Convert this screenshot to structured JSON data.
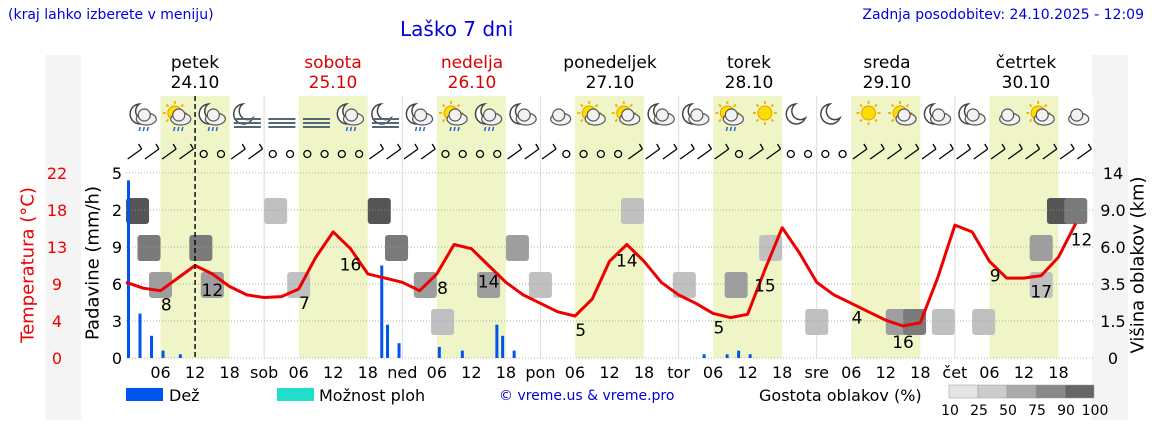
{
  "header": {
    "hint": "(kraj lahko izberete v meniju)",
    "title": "Laško 7 dni",
    "updated": "Zadnja posodobitev: 24.10.2025 - 12:09"
  },
  "days": [
    {
      "name": "petek",
      "date": "24.10",
      "weekend": false
    },
    {
      "name": "sobota",
      "date": "25.10",
      "weekend": true
    },
    {
      "name": "nedelja",
      "date": "26.10",
      "weekend": true
    },
    {
      "name": "ponedeljek",
      "date": "27.10",
      "weekend": false
    },
    {
      "name": "torek",
      "date": "28.10",
      "weekend": false
    },
    {
      "name": "sreda",
      "date": "29.10",
      "weekend": false
    },
    {
      "name": "četrtek",
      "date": "30.10",
      "weekend": false
    }
  ],
  "weather_icons": [
    "moon-cloud-rain",
    "sun-cloud-rain",
    "moon-cloud-rain",
    "moon-fog",
    "fog",
    "fog",
    "moon-cloud-rain",
    "moon-fog",
    "moon-cloud-drizzle",
    "sun-cloud-drizzle",
    "moon-cloud-drizzle",
    "moon-cloud",
    "cloud",
    "sun-cloud",
    "sun-cloud",
    "moon-cloud",
    "moon-cloud",
    "sun-cloud-rain",
    "sun",
    "moon",
    "moon",
    "sun",
    "sun-cloud",
    "moon-cloud",
    "moon-cloud",
    "cloud",
    "sun-cloud",
    "cloud"
  ],
  "wind_symbols": [
    "slash",
    "slash",
    "slash",
    "slash",
    "calm",
    "calm",
    "slash",
    "slash",
    "calm",
    "calm",
    "calm",
    "calm",
    "calm",
    "calm",
    "slash",
    "slash",
    "slash",
    "slash",
    "calm",
    "calm",
    "calm",
    "calm",
    "slash",
    "slash",
    "slash",
    "calm",
    "calm",
    "calm",
    "calm",
    "slash",
    "slash",
    "slash",
    "slash",
    "slash",
    "slash",
    "calm",
    "slash",
    "slash",
    "calm",
    "calm",
    "calm",
    "calm",
    "slash",
    "slash",
    "slash",
    "slash",
    "slash",
    "slash",
    "slash",
    "slash",
    "slash",
    "slash",
    "slash",
    "slash",
    "slash",
    "slash"
  ],
  "axes": {
    "left_temp_label": "Temperatura (°C)",
    "left_precip_label": "Padavine (mm/h)",
    "right_label": "Višina oblakov (km)",
    "temp_ticks": [
      "22",
      "18",
      "13",
      "9",
      "4",
      "0"
    ],
    "precip_ticks": [
      "5",
      "2",
      "9",
      "6",
      "3",
      "0"
    ],
    "cloud_ticks": [
      "14",
      "9.0",
      "6.0",
      "3.5",
      "1.5",
      "0"
    ],
    "hour_ticks": [
      "06",
      "12",
      "18",
      "sob",
      "06",
      "12",
      "18",
      "ned",
      "06",
      "12",
      "18",
      "pon",
      "06",
      "12",
      "18",
      "tor",
      "06",
      "12",
      "18",
      "sre",
      "06",
      "12",
      "18",
      "čet",
      "06",
      "12",
      "18"
    ]
  },
  "chart_data": {
    "type": "line",
    "title": "Laško 7 dni",
    "xlabel": "",
    "ylabel": "Temperatura (°C)",
    "ylim": [
      0,
      22
    ],
    "x_unit": "hours since 24.10 00:00",
    "x": [
      0,
      3,
      6,
      9,
      12,
      15,
      18,
      21,
      24,
      27,
      30,
      33,
      36,
      39,
      42,
      45,
      48,
      51,
      54,
      57,
      60,
      63,
      66,
      69,
      72,
      75,
      78,
      81,
      84,
      87,
      90,
      93,
      96,
      99,
      102,
      105,
      108,
      111,
      114,
      117,
      120,
      123,
      126,
      129,
      132,
      135,
      138,
      141,
      144,
      147,
      150,
      153,
      156,
      159,
      162,
      165
    ],
    "series": [
      {
        "name": "Temperatura (°C)",
        "color": "#ee0000",
        "values": [
          9,
          8.3,
          8,
          9.5,
          11,
          10,
          8.5,
          7.5,
          7.2,
          7.3,
          8.2,
          12,
          15,
          13,
          10,
          9.5,
          9,
          8,
          10,
          13.5,
          13,
          11,
          9,
          7.5,
          6.5,
          5.5,
          5,
          7,
          11.5,
          13.5,
          11.5,
          9,
          7.5,
          6.5,
          5.3,
          4.8,
          5.2,
          10.5,
          15.5,
          12.5,
          9,
          7.5,
          6.5,
          5.5,
          4.5,
          3.8,
          4.2,
          9.5,
          15.8,
          15,
          11.5,
          9.5,
          9.5,
          9.8,
          12,
          16
        ]
      }
    ],
    "precip_mm_h": [
      {
        "hour": 0,
        "value": 4.8
      },
      {
        "hour": 2,
        "value": 1.2
      },
      {
        "hour": 4,
        "value": 0.6
      },
      {
        "hour": 6,
        "value": 0.2
      },
      {
        "hour": 9,
        "value": 0.1
      },
      {
        "hour": 44,
        "value": 2.5
      },
      {
        "hour": 45,
        "value": 0.9
      },
      {
        "hour": 47,
        "value": 0.4
      },
      {
        "hour": 54,
        "value": 0.3
      },
      {
        "hour": 58,
        "value": 0.2
      },
      {
        "hour": 64,
        "value": 0.9
      },
      {
        "hour": 65,
        "value": 0.6
      },
      {
        "hour": 67,
        "value": 0.2
      },
      {
        "hour": 100,
        "value": 0.1
      },
      {
        "hour": 104,
        "value": 0.1
      },
      {
        "hour": 106,
        "value": 0.2
      },
      {
        "hour": 108,
        "value": 0.1
      }
    ],
    "temp_labels": [
      {
        "hour": 7,
        "value": "8"
      },
      {
        "hour": 15,
        "value": "12"
      },
      {
        "hour": 31,
        "value": "7"
      },
      {
        "hour": 39,
        "value": "16"
      },
      {
        "hour": 55,
        "value": "8"
      },
      {
        "hour": 63,
        "value": "14"
      },
      {
        "hour": 79,
        "value": "5"
      },
      {
        "hour": 87,
        "value": "14"
      },
      {
        "hour": 103,
        "value": "5"
      },
      {
        "hour": 111,
        "value": "15"
      },
      {
        "hour": 127,
        "value": "4"
      },
      {
        "hour": 135,
        "value": "16"
      },
      {
        "hour": 151,
        "value": "9"
      },
      {
        "hour": 159,
        "value": "17"
      },
      {
        "hour": 166,
        "value": "12"
      }
    ],
    "clouds": [
      {
        "hour": 0,
        "km": 9.0,
        "density": 90
      },
      {
        "hour": 2,
        "km": 6.0,
        "density": 75
      },
      {
        "hour": 4,
        "km": 3.5,
        "density": 50
      },
      {
        "hour": 11,
        "km": 6.0,
        "density": 75
      },
      {
        "hour": 13,
        "km": 3.5,
        "density": 50
      },
      {
        "hour": 24,
        "km": 9.0,
        "density": 25
      },
      {
        "hour": 28,
        "km": 3.5,
        "density": 25
      },
      {
        "hour": 42,
        "km": 9.0,
        "density": 90
      },
      {
        "hour": 45,
        "km": 6.0,
        "density": 75
      },
      {
        "hour": 50,
        "km": 3.5,
        "density": 50
      },
      {
        "hour": 53,
        "km": 1.5,
        "density": 25
      },
      {
        "hour": 61,
        "km": 3.5,
        "density": 50
      },
      {
        "hour": 66,
        "km": 6.0,
        "density": 50
      },
      {
        "hour": 70,
        "km": 3.5,
        "density": 25
      },
      {
        "hour": 86,
        "km": 9.0,
        "density": 25
      },
      {
        "hour": 95,
        "km": 3.5,
        "density": 25
      },
      {
        "hour": 104,
        "km": 3.5,
        "density": 50
      },
      {
        "hour": 110,
        "km": 6.0,
        "density": 25
      },
      {
        "hour": 118,
        "km": 1.5,
        "density": 25
      },
      {
        "hour": 132,
        "km": 1.5,
        "density": 50
      },
      {
        "hour": 135,
        "km": 1.5,
        "density": 75
      },
      {
        "hour": 140,
        "km": 1.5,
        "density": 25
      },
      {
        "hour": 147,
        "km": 1.5,
        "density": 25
      },
      {
        "hour": 157,
        "km": 6.0,
        "density": 50
      },
      {
        "hour": 160,
        "km": 9.0,
        "density": 90
      },
      {
        "hour": 163,
        "km": 9.0,
        "density": 75
      },
      {
        "hour": 157,
        "km": 3.5,
        "density": 25
      }
    ],
    "now_marker_hour": 12
  },
  "legend": {
    "rain": "Dež",
    "storm": "Možnost ploh",
    "credit": "© vreme.us & vreme.pro",
    "density_label": "Gostota oblakov (%)",
    "density_levels": [
      "10",
      "25",
      "50",
      "75",
      "90",
      "100"
    ],
    "colors": {
      "rain": "#0055ee",
      "storm": "#22ddcc",
      "temp": "#ee0000",
      "daylight": "#f0f5c8",
      "blue_text": "#0000dd",
      "weekend": "#dd0000"
    }
  }
}
